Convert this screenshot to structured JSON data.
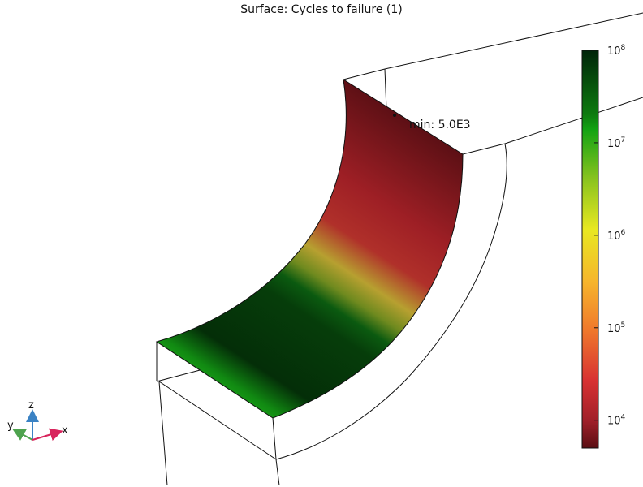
{
  "plot": {
    "title": "Surface: Cycles to failure (1)",
    "min_annotation": "min: 5.0E3"
  },
  "colorbar": {
    "scale": "log",
    "range": [
      5000,
      100000000
    ],
    "ticks": [
      {
        "base": "10",
        "exp": "8",
        "value": 100000000
      },
      {
        "base": "10",
        "exp": "7",
        "value": 10000000
      },
      {
        "base": "10",
        "exp": "6",
        "value": 1000000
      },
      {
        "base": "10",
        "exp": "5",
        "value": 100000
      },
      {
        "base": "10",
        "exp": "4",
        "value": 10000
      }
    ],
    "colors": [
      "#00240a",
      "#13a313",
      "#e8e820",
      "#f39a2a",
      "#d83232",
      "#5a0f14"
    ]
  },
  "axes_triad": {
    "z": {
      "label": "z",
      "color": "#3a82c4"
    },
    "y": {
      "label": "y",
      "color": "#4ea34e"
    },
    "x": {
      "label": "x",
      "color": "#d8245c"
    }
  }
}
